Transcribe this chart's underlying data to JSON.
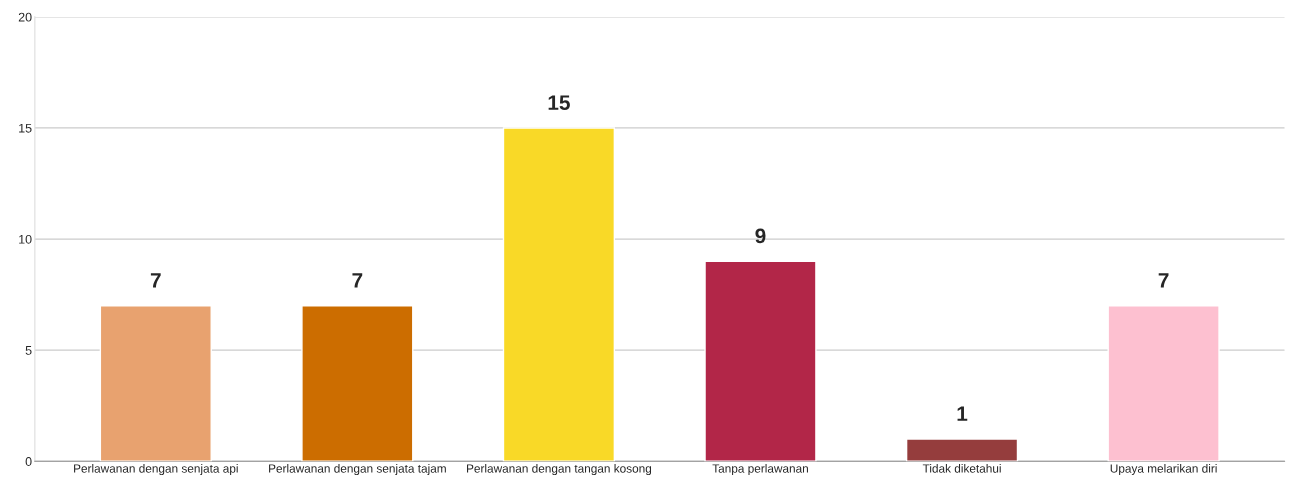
{
  "chart_data": {
    "type": "bar",
    "categories": [
      "Perlawanan dengan senjata api",
      "Perlawanan dengan senjata tajam",
      "Perlawanan dengan tangan kosong",
      "Tanpa perlawanan",
      "Tidak diketahui",
      "Upaya melarikan diri"
    ],
    "values": [
      7,
      7,
      15,
      9,
      1,
      7
    ],
    "colors": [
      "#e8a26f",
      "#cc6d00",
      "#f9d927",
      "#b22648",
      "#953d3d",
      "#fdc0d0"
    ],
    "ylim": [
      0,
      20
    ],
    "yticks": [
      0,
      5,
      10,
      15,
      20
    ],
    "grid": "y",
    "data_labels": true
  }
}
